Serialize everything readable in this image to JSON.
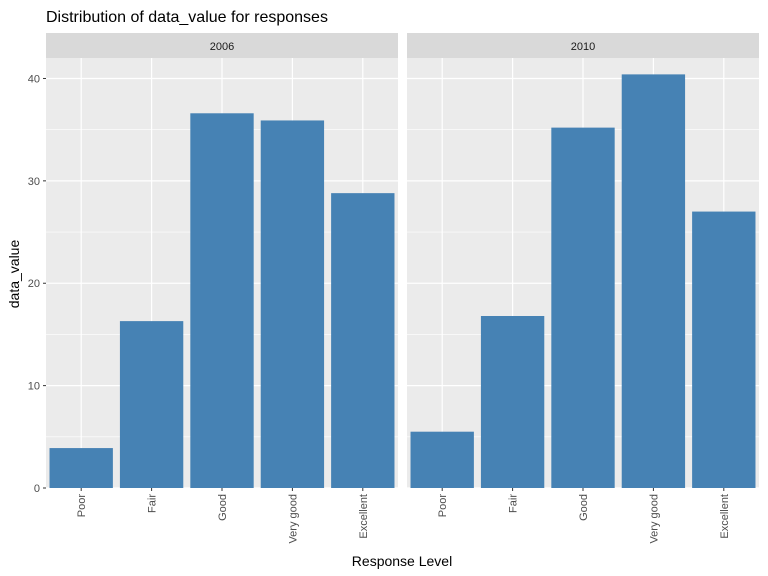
{
  "chart_data": {
    "type": "bar",
    "title": "Distribution of data_value for responses",
    "xlabel": "Response Level",
    "ylabel": "data_value",
    "ylim": [
      0,
      42
    ],
    "y_ticks": [
      0,
      10,
      20,
      30,
      40
    ],
    "grid": true,
    "categories": [
      "Poor",
      "Fair",
      "Good",
      "Very good",
      "Excellent"
    ],
    "bar_color": "#4682B4",
    "panel_background": "#EBEBEB",
    "strip_background": "#D9D9D9",
    "facets": [
      {
        "label": "2006",
        "values": [
          3.9,
          16.3,
          36.6,
          35.9,
          28.8
        ]
      },
      {
        "label": "2010",
        "values": [
          5.5,
          16.8,
          35.2,
          40.4,
          27.0
        ]
      }
    ]
  }
}
